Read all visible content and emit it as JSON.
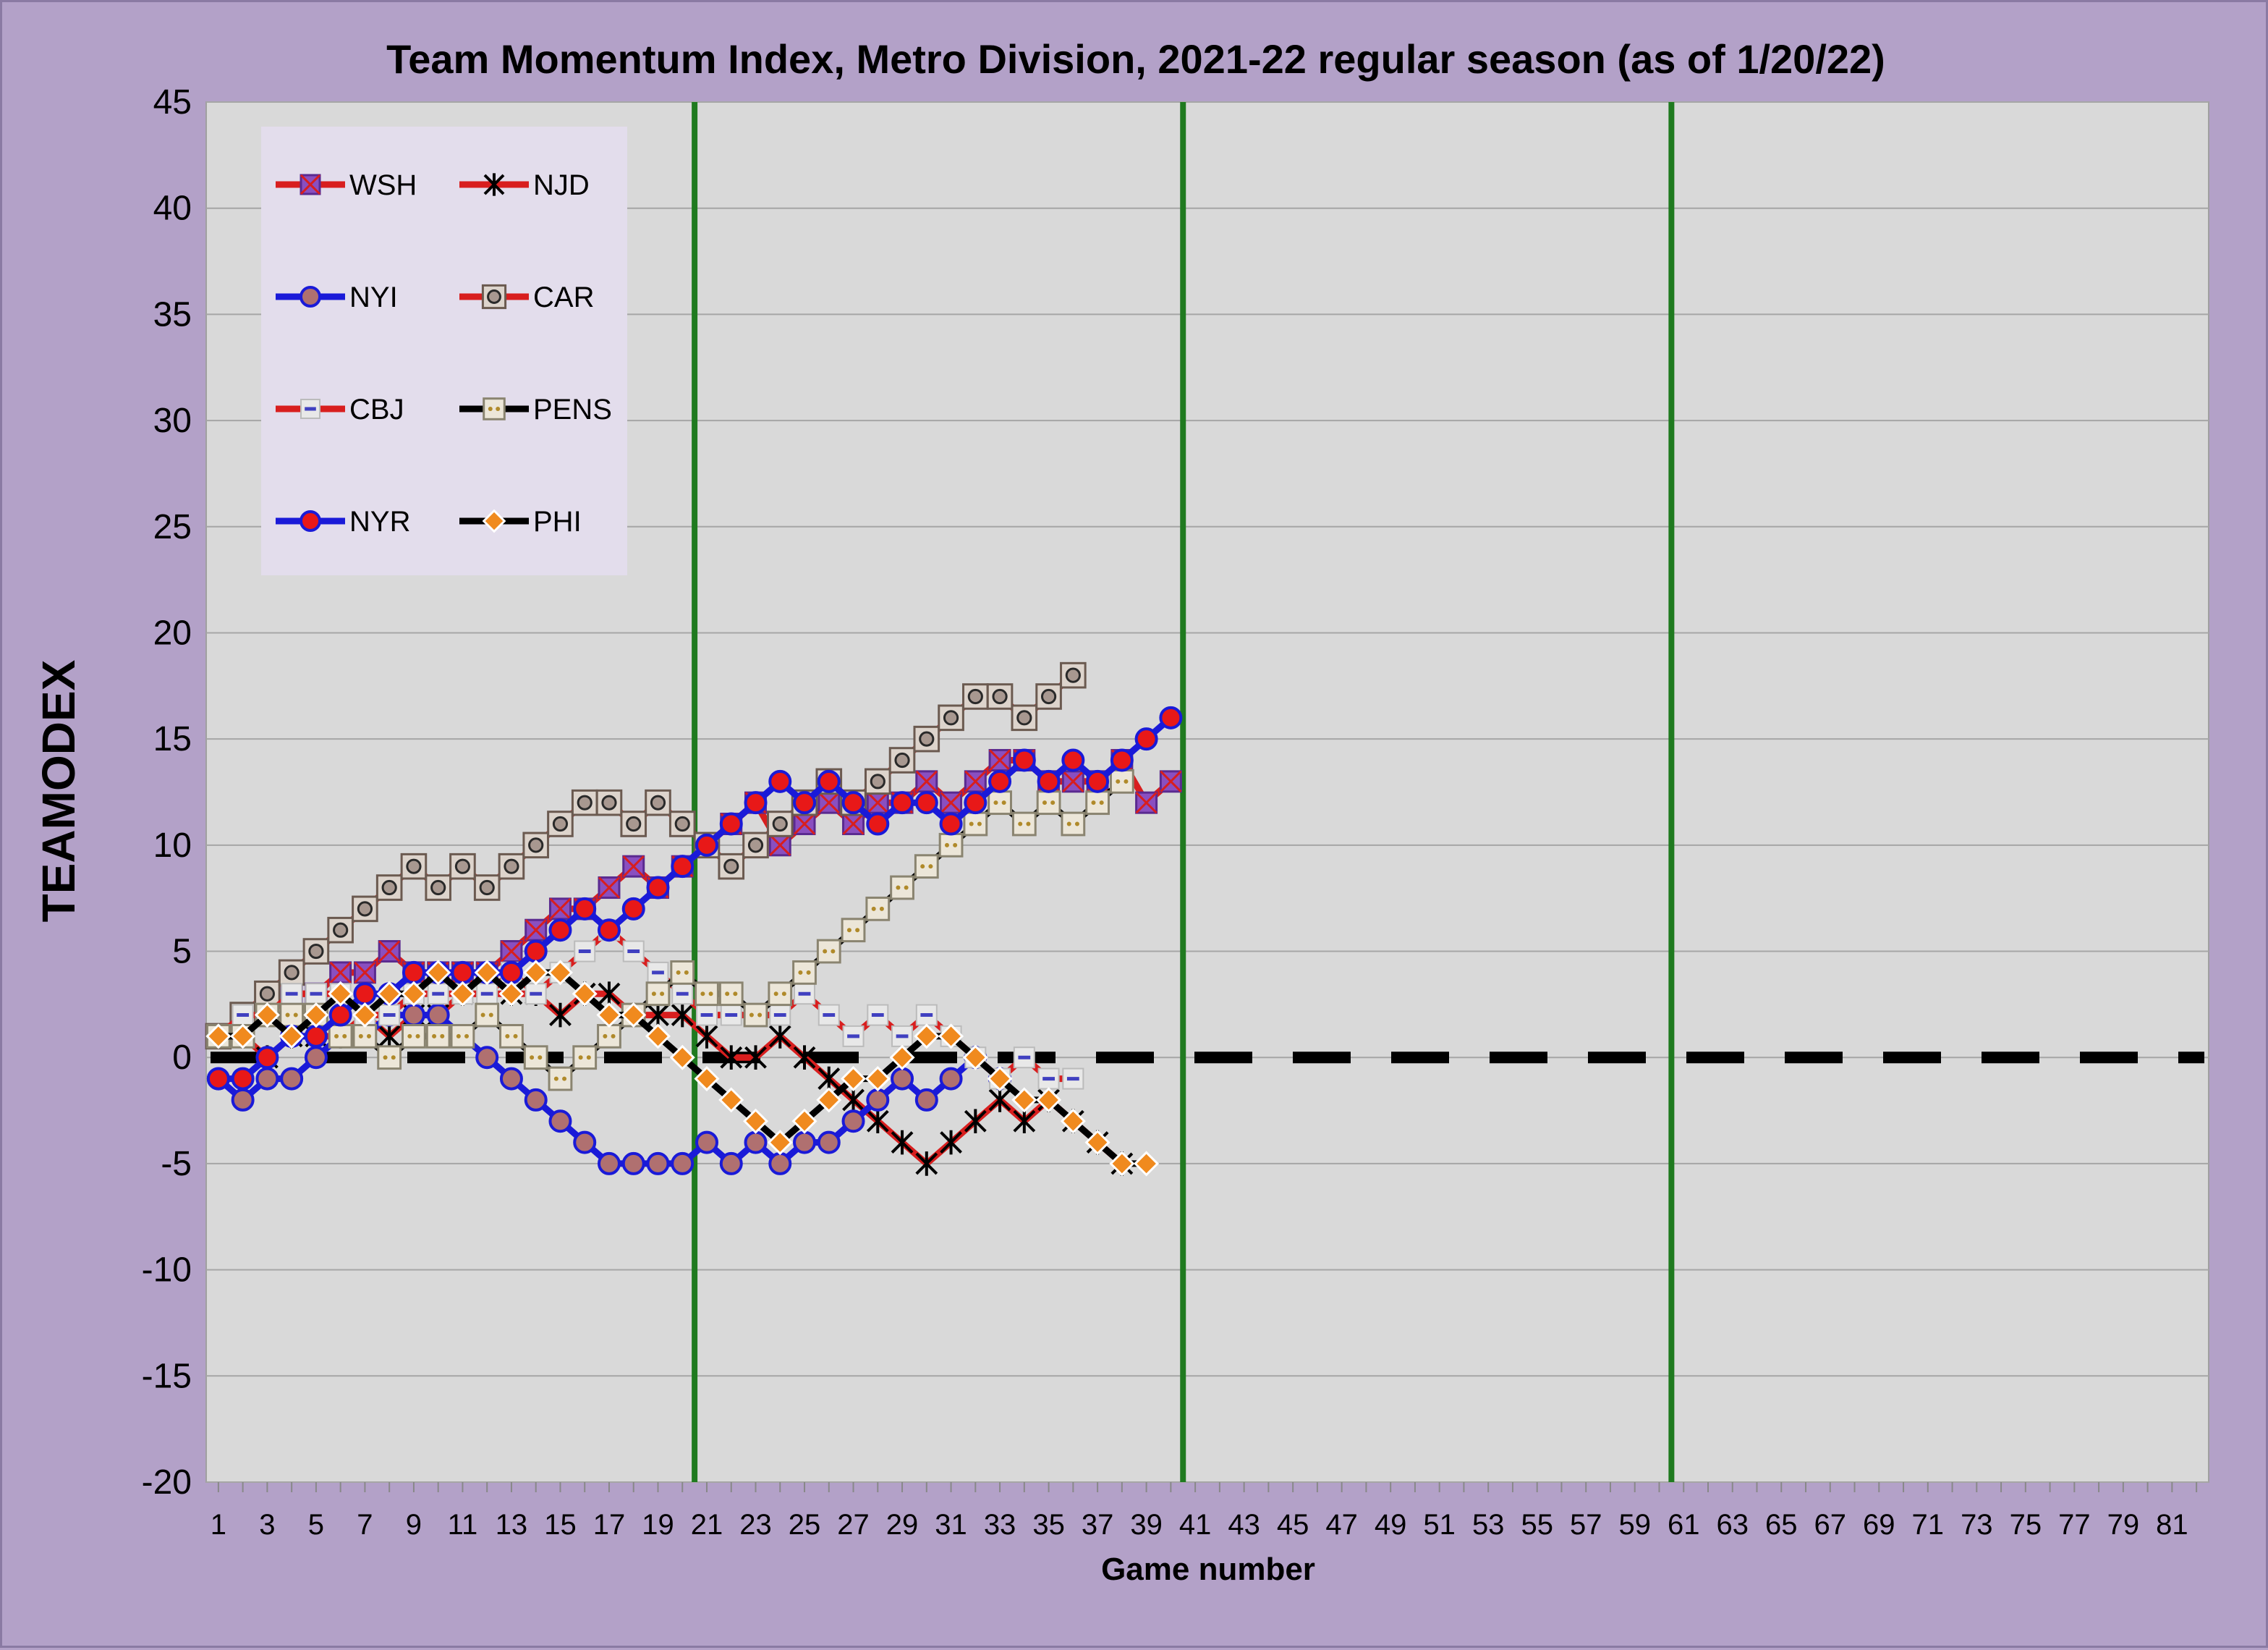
{
  "chart_data": {
    "type": "line",
    "title": "Team Momentum Index, Metro Division, 2021-22 regular season (as of 1/20/22)",
    "xlabel": "Game number",
    "ylabel": "TEAMODEX",
    "ylim": [
      -20,
      45
    ],
    "yticks": [
      45,
      40,
      35,
      30,
      25,
      20,
      15,
      10,
      5,
      0,
      -5,
      -10,
      -15,
      -20
    ],
    "xlim": [
      1,
      82
    ],
    "xticks": [
      1,
      3,
      5,
      7,
      9,
      11,
      13,
      15,
      17,
      19,
      21,
      23,
      25,
      27,
      29,
      31,
      33,
      35,
      37,
      39,
      41,
      43,
      45,
      47,
      49,
      51,
      53,
      55,
      57,
      59,
      61,
      63,
      65,
      67,
      69,
      71,
      73,
      75,
      77,
      79,
      81
    ],
    "grid": "horizontal",
    "legend_position": "top-left",
    "vertical_markers": [
      20.5,
      40.5,
      60.5
    ],
    "zero_line": true,
    "series": [
      {
        "name": "WSH",
        "line_color": "#d81e1e",
        "marker": "square-x",
        "marker_color": "#8a4fc0",
        "values": [
          1,
          2,
          2,
          3,
          3,
          4,
          4,
          5,
          4,
          4,
          4,
          4,
          5,
          6,
          7,
          7,
          8,
          9,
          8,
          9,
          10,
          11,
          12,
          10,
          11,
          12,
          11,
          12,
          12,
          13,
          12,
          13,
          14,
          14,
          13,
          13,
          13,
          14,
          12,
          13
        ]
      },
      {
        "name": "NJD",
        "line_color": "#d81e1e",
        "marker": "star",
        "marker_color": "#000000",
        "values": [
          1,
          1,
          0,
          1,
          1,
          1,
          2,
          1,
          2,
          2,
          3,
          3,
          3,
          3,
          2,
          3,
          3,
          2,
          2,
          2,
          1,
          0,
          0,
          1,
          0,
          -1,
          -2,
          -3,
          -4,
          -5,
          -4,
          -3,
          -2,
          -3,
          -2,
          -3,
          -4,
          -5
        ]
      },
      {
        "name": "NYI",
        "line_color": "#1a1ad8",
        "marker": "circle",
        "marker_color": "#b07070",
        "values": [
          -1,
          -2,
          -1,
          -1,
          0,
          1,
          1,
          2,
          2,
          2,
          1,
          0,
          -1,
          -2,
          -3,
          -4,
          -5,
          -5,
          -5,
          -5,
          -4,
          -5,
          -4,
          -5,
          -4,
          -4,
          -3,
          -2,
          -1,
          -2,
          -1,
          0,
          -1
        ]
      },
      {
        "name": "CAR",
        "line_color": "#d81e1e",
        "marker": "square-emblem",
        "marker_color": "#a89890",
        "values": [
          1,
          2,
          3,
          4,
          5,
          6,
          7,
          8,
          9,
          8,
          9,
          8,
          9,
          10,
          11,
          12,
          12,
          11,
          12,
          11,
          10,
          9,
          10,
          11,
          12,
          13,
          12,
          13,
          14,
          15,
          16,
          17,
          17,
          16,
          17,
          18
        ]
      },
      {
        "name": "CBJ",
        "line_color": "#d81e1e",
        "marker": "square-dash",
        "marker_color": "#e8e8e8",
        "values": [
          1,
          2,
          2,
          3,
          3,
          3,
          2,
          2,
          3,
          3,
          3,
          3,
          4,
          3,
          4,
          5,
          6,
          5,
          4,
          3,
          2,
          2,
          2,
          2,
          3,
          2,
          1,
          2,
          1,
          2,
          1,
          0,
          -1,
          0,
          -1,
          -1
        ]
      },
      {
        "name": "PENS",
        "line_color": "#000000",
        "marker": "square-dots",
        "marker_color": "#ece6d8",
        "values": [
          1,
          1,
          2,
          2,
          2,
          1,
          1,
          0,
          1,
          1,
          1,
          2,
          1,
          0,
          -1,
          0,
          1,
          2,
          3,
          4,
          3,
          3,
          2,
          3,
          4,
          5,
          6,
          7,
          8,
          9,
          10,
          11,
          12,
          11,
          12,
          11,
          12,
          13
        ]
      },
      {
        "name": "NYR",
        "line_color": "#1a1ad8",
        "marker": "circle",
        "marker_color": "#e81818",
        "values": [
          -1,
          -1,
          0,
          1,
          1,
          2,
          3,
          3,
          4,
          4,
          4,
          4,
          4,
          5,
          6,
          7,
          6,
          7,
          8,
          9,
          10,
          11,
          12,
          13,
          12,
          13,
          12,
          11,
          12,
          12,
          11,
          12,
          13,
          14,
          13,
          14,
          13,
          14,
          15,
          16
        ]
      },
      {
        "name": "PHI",
        "line_color": "#000000",
        "marker": "diamond",
        "marker_color": "#f08a1e",
        "values": [
          1,
          1,
          2,
          1,
          2,
          3,
          2,
          3,
          3,
          4,
          3,
          4,
          3,
          4,
          4,
          3,
          2,
          2,
          1,
          0,
          -1,
          -2,
          -3,
          -4,
          -3,
          -2,
          -1,
          -1,
          0,
          1,
          1,
          0,
          -1,
          -2,
          -2,
          -3,
          -4,
          -5,
          -5
        ]
      }
    ]
  }
}
